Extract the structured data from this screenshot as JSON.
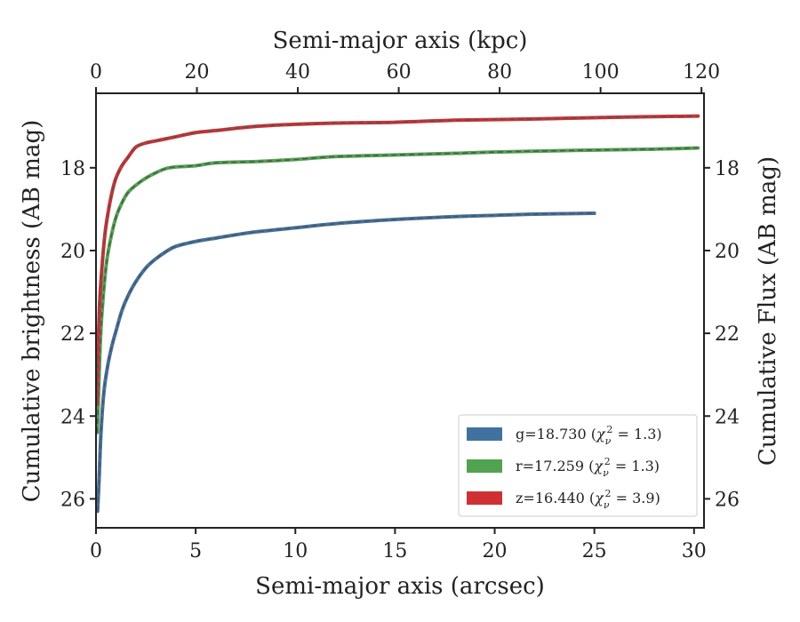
{
  "chart_data": {
    "type": "line",
    "title": "",
    "xlabel": "Semi-major axis (arcsec)",
    "ylabel": "Cumulative brightness (AB mag)",
    "x2label": "Semi-major axis (kpc)",
    "y2label": "Cumulative Flux (AB mag)",
    "xlim": [
      0,
      30.5
    ],
    "ylim": [
      26.7,
      16.2
    ],
    "y_inverted": true,
    "x2lim": [
      0,
      120.5
    ],
    "xticks": [
      0,
      5,
      10,
      15,
      20,
      25,
      30
    ],
    "yticks": [
      18,
      20,
      22,
      24,
      26
    ],
    "x2ticks": [
      0,
      20,
      40,
      60,
      80,
      100,
      120
    ],
    "xtick_labels": [
      "0",
      "5",
      "10",
      "15",
      "20",
      "25",
      "30"
    ],
    "ytick_labels": [
      "18",
      "20",
      "22",
      "24",
      "26"
    ],
    "x2tick_labels": [
      "0",
      "20",
      "40",
      "60",
      "80",
      "100",
      "120"
    ],
    "y2tick_labels": [
      "18",
      "20",
      "22",
      "24",
      "26"
    ],
    "grid": false,
    "legend_position": "bottom-right",
    "series": [
      {
        "band": "g",
        "label_value": "18.730",
        "chi": "1.3",
        "color": "#41729f",
        "x": [
          0.08,
          0.15,
          0.25,
          0.4,
          0.6,
          0.8,
          1.0,
          1.3,
          1.6,
          2.0,
          2.5,
          3.0,
          3.5,
          4.0,
          5.0,
          6.0,
          7.0,
          8.0,
          10.0,
          12.0,
          15.0,
          18.0,
          20.0,
          22.0,
          25.0
        ],
        "values": [
          26.3,
          25.6,
          24.4,
          23.4,
          22.75,
          22.3,
          21.95,
          21.45,
          21.1,
          20.75,
          20.42,
          20.2,
          20.03,
          19.9,
          19.78,
          19.7,
          19.62,
          19.55,
          19.45,
          19.35,
          19.25,
          19.18,
          19.15,
          19.12,
          19.1
        ]
      },
      {
        "band": "r",
        "label_value": "17.259",
        "chi": "1.3",
        "color": "#52a351",
        "x": [
          0.06,
          0.12,
          0.2,
          0.3,
          0.5,
          0.7,
          1.0,
          1.3,
          1.6,
          2.0,
          2.5,
          3.0,
          3.5,
          4.0,
          5.0,
          6.0,
          8.0,
          10.0,
          12.0,
          15.0,
          18.0,
          20.0,
          24.0,
          28.0,
          30.2
        ],
        "values": [
          24.4,
          23.6,
          22.4,
          21.5,
          20.4,
          19.8,
          19.2,
          18.85,
          18.6,
          18.42,
          18.25,
          18.12,
          18.02,
          17.98,
          17.95,
          17.88,
          17.85,
          17.8,
          17.73,
          17.69,
          17.65,
          17.62,
          17.58,
          17.55,
          17.52
        ]
      },
      {
        "band": "z",
        "label_value": "16.440",
        "chi": "3.9",
        "color": "#cf3133",
        "x": [
          0.05,
          0.1,
          0.18,
          0.3,
          0.45,
          0.6,
          0.8,
          1.0,
          1.3,
          1.6,
          2.0,
          2.5,
          3.0,
          3.5,
          4.0,
          5.0,
          6.0,
          8.0,
          10.0,
          12.0,
          15.0,
          18.0,
          22.0,
          26.0,
          30.2
        ],
        "values": [
          23.7,
          22.6,
          21.3,
          20.4,
          19.6,
          19.1,
          18.6,
          18.25,
          17.95,
          17.75,
          17.5,
          17.4,
          17.35,
          17.3,
          17.25,
          17.15,
          17.1,
          17.0,
          16.95,
          16.92,
          16.9,
          16.85,
          16.82,
          16.78,
          16.75
        ]
      }
    ]
  }
}
